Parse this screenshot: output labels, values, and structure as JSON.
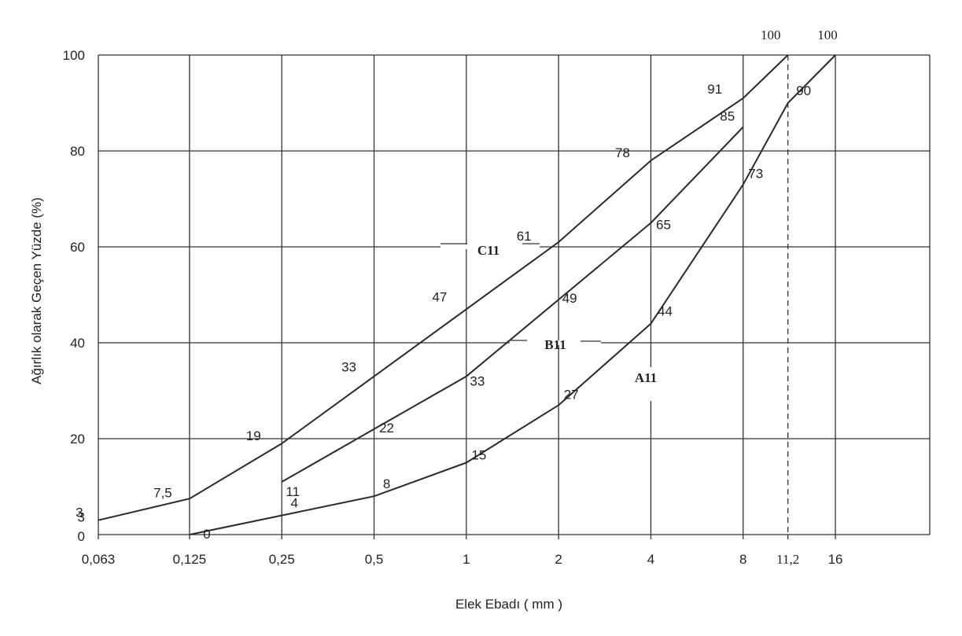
{
  "chart_data": {
    "type": "line",
    "xlabel": "Elek Ebadı ( mm )",
    "ylabel": "Ağırlık olarak Geçen Yüzde (%)",
    "x_tick_labels": [
      "0,063",
      "0,125",
      "0,25",
      "0,5",
      "1",
      "2",
      "4",
      "8",
      "11,2",
      "16"
    ],
    "y_tick_labels": [
      "0",
      "3",
      "20",
      "40",
      "60",
      "80",
      "100"
    ],
    "y_ticks": [
      0,
      3,
      20,
      40,
      60,
      80,
      100
    ],
    "ylim": [
      0,
      100
    ],
    "x_scale": "log2",
    "grid": true,
    "series": [
      {
        "name": "C11",
        "x": [
          0.063,
          0.125,
          0.25,
          0.5,
          1,
          2,
          4,
          8,
          11.2
        ],
        "y": [
          3,
          7.5,
          19,
          33,
          47,
          61,
          78,
          91,
          100
        ],
        "labels": [
          "3",
          "7,5",
          "19",
          "33",
          "47",
          "61",
          "78",
          "91",
          "100"
        ]
      },
      {
        "name": "B11",
        "x": [
          0.25,
          0.5,
          1,
          2,
          4,
          8
        ],
        "y": [
          11,
          22,
          33,
          49,
          65,
          85
        ],
        "labels": [
          "11",
          "22",
          "33",
          "49",
          "65",
          "85"
        ]
      },
      {
        "name": "A11",
        "x": [
          0.125,
          0.25,
          0.5,
          1,
          2,
          4,
          8,
          11.2,
          16
        ],
        "y": [
          0,
          4,
          8,
          15,
          27,
          44,
          73,
          90,
          100
        ],
        "labels": [
          "0",
          "4",
          "8",
          "15",
          "27",
          "44",
          "73",
          "90",
          "100"
        ]
      }
    ]
  }
}
